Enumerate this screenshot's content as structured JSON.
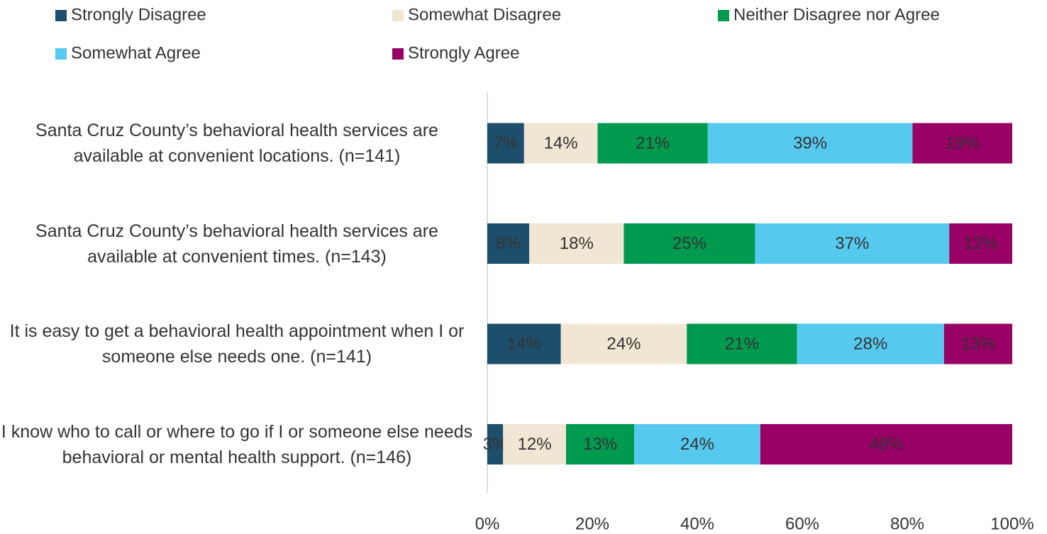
{
  "chart_data": {
    "type": "stacked_bar_horizontal",
    "categories": [
      "Santa Cruz County’s behavioral health services are available at convenient locations. (n=141)",
      "Santa Cruz County’s behavioral health services are available at convenient times. (n=143)",
      "It is easy to get a behavioral health appointment when I or someone else needs one. (n=141)",
      "I know who to call or where to go if I or someone else needs behavioral or mental health support. (n=146)"
    ],
    "series": [
      {
        "name": "Strongly Disagree",
        "color": "#1d4e6b",
        "values": [
          7,
          8,
          14,
          3
        ],
        "value_labels": [
          "7%",
          "8%",
          "14%",
          "3%"
        ]
      },
      {
        "name": "Somewhat Disagree",
        "color": "#f0e6d3",
        "values": [
          14,
          18,
          24,
          12
        ],
        "value_labels": [
          "14%",
          "18%",
          "24%",
          "12%"
        ]
      },
      {
        "name": "Neither Disagree nor Agree",
        "color": "#009a4e",
        "values": [
          21,
          25,
          21,
          13
        ],
        "value_labels": [
          "21%",
          "25%",
          "21%",
          "13%"
        ]
      },
      {
        "name": "Somewhat Agree",
        "color": "#56c9ee",
        "values": [
          39,
          37,
          28,
          24
        ],
        "value_labels": [
          "39%",
          "37%",
          "28%",
          "24%"
        ]
      },
      {
        "name": "Strongly Agree",
        "color": "#990066",
        "values": [
          19,
          12,
          13,
          48
        ],
        "value_labels": [
          "19%",
          "12%",
          "13%",
          "48%"
        ]
      }
    ],
    "xlim": [
      0,
      100
    ],
    "xticks": [
      {
        "value": 0,
        "label": "0%"
      },
      {
        "value": 20,
        "label": "20%"
      },
      {
        "value": 40,
        "label": "40%"
      },
      {
        "value": 60,
        "label": "60%"
      },
      {
        "value": 80,
        "label": "80%"
      },
      {
        "value": 100,
        "label": "100%"
      }
    ],
    "legend": "top"
  }
}
